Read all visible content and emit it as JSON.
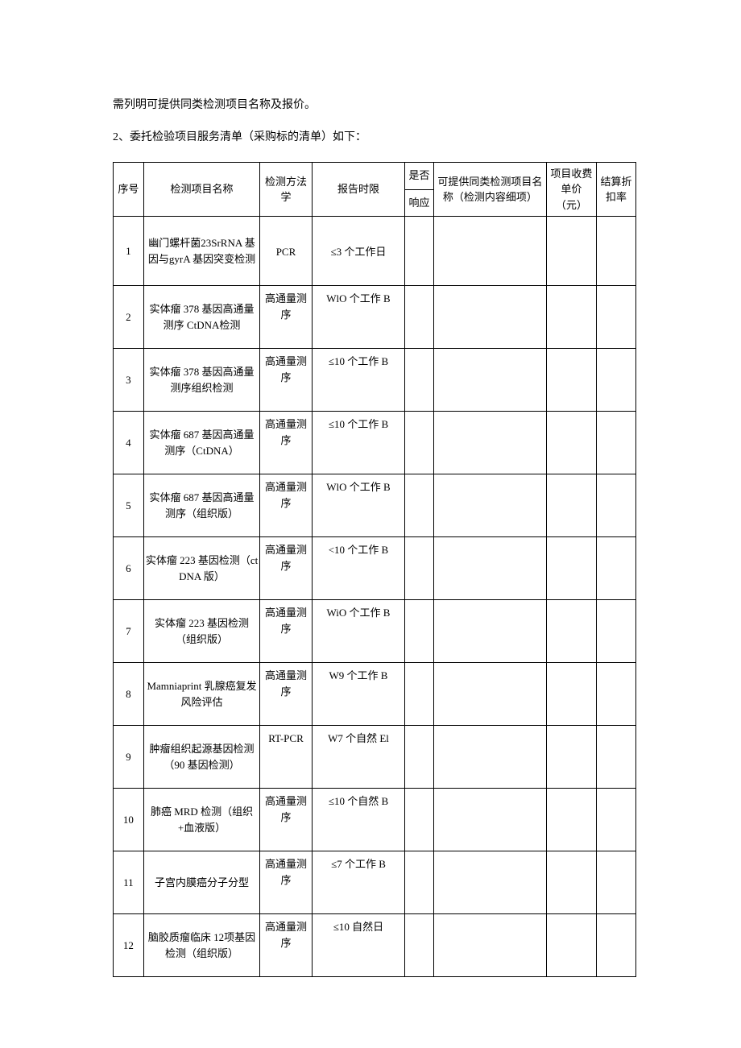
{
  "intro_line": "需列明可提供同类检测项目名称及报价。",
  "list_title": "2、委托检验项目服务清单（采购标的清单）如下：",
  "headers": {
    "seq": "序号",
    "name": "检测项目名称",
    "method": "检测方法学",
    "time": "报告时限",
    "resp_top": "是否",
    "resp_bot": "响应",
    "similar": "可提供同类检测项目名称（检测内容细项）",
    "price": "项目收费单价（元）",
    "disc": "结算折扣率"
  },
  "rows": [
    {
      "seq": "1",
      "name": "幽门螺杆菌23SrRNA 基因与gyrA 基因突变检测",
      "method": "PCR",
      "time": "≤3 个工作日",
      "resp": "",
      "similar": "",
      "price": "",
      "disc": ""
    },
    {
      "seq": "2",
      "name": "实体瘤 378 基因高通量测序 CtDNA检测",
      "method": "高通量测序",
      "time": "WlO 个工作 B",
      "resp": "",
      "similar": "",
      "price": "",
      "disc": ""
    },
    {
      "seq": "3",
      "name": "实体瘤 378 基因高通量测序组织检测",
      "method": "高通量测序",
      "time": "≤10 个工作 B",
      "resp": "",
      "similar": "",
      "price": "",
      "disc": ""
    },
    {
      "seq": "4",
      "name": "实体瘤 687 基因高通量测序（CtDNA）",
      "method": "高通量测序",
      "time": "≤10 个工作 B",
      "resp": "",
      "similar": "",
      "price": "",
      "disc": ""
    },
    {
      "seq": "5",
      "name": "实体瘤 687 基因高通量测序（组织版）",
      "method": "高通量测序",
      "time": "WlO 个工作 B",
      "resp": "",
      "similar": "",
      "price": "",
      "disc": ""
    },
    {
      "seq": "6",
      "name": "实体瘤 223 基因检测（ctDNA 版）",
      "method": "高通量测序",
      "time": "<10 个工作 B",
      "resp": "",
      "similar": "",
      "price": "",
      "disc": ""
    },
    {
      "seq": "7",
      "name": "实体瘤 223 基因检测（组织版）",
      "method": "高通量测序",
      "time": "WiO 个工作 B",
      "resp": "",
      "similar": "",
      "price": "",
      "disc": ""
    },
    {
      "seq": "8",
      "name": "Mamniaprint 乳腺癌复发风险评估",
      "method": "高通量测序",
      "time": "W9 个工作 B",
      "resp": "",
      "similar": "",
      "price": "",
      "disc": ""
    },
    {
      "seq": "9",
      "name": "肿瘤组织起源基因检测（90 基因检测）",
      "method": "RT-PCR",
      "time": "W7 个自然 El",
      "resp": "",
      "similar": "",
      "price": "",
      "disc": ""
    },
    {
      "seq": "10",
      "name": "肺癌 MRD 检测（组织+血液版）",
      "method": "高通量测序",
      "time": "≤10 个自然 B",
      "resp": "",
      "similar": "",
      "price": "",
      "disc": ""
    },
    {
      "seq": "11",
      "name": "子宫内膜癌分子分型",
      "method": "高通量测序",
      "time": "≤7 个工作 B",
      "resp": "",
      "similar": "",
      "price": "",
      "disc": ""
    },
    {
      "seq": "12",
      "name": "脑胶质瘤临床 12项基因检测（组织版）",
      "method": "高通量测序",
      "time": "≤10 自然日",
      "resp": "",
      "similar": "",
      "price": "",
      "disc": ""
    }
  ]
}
